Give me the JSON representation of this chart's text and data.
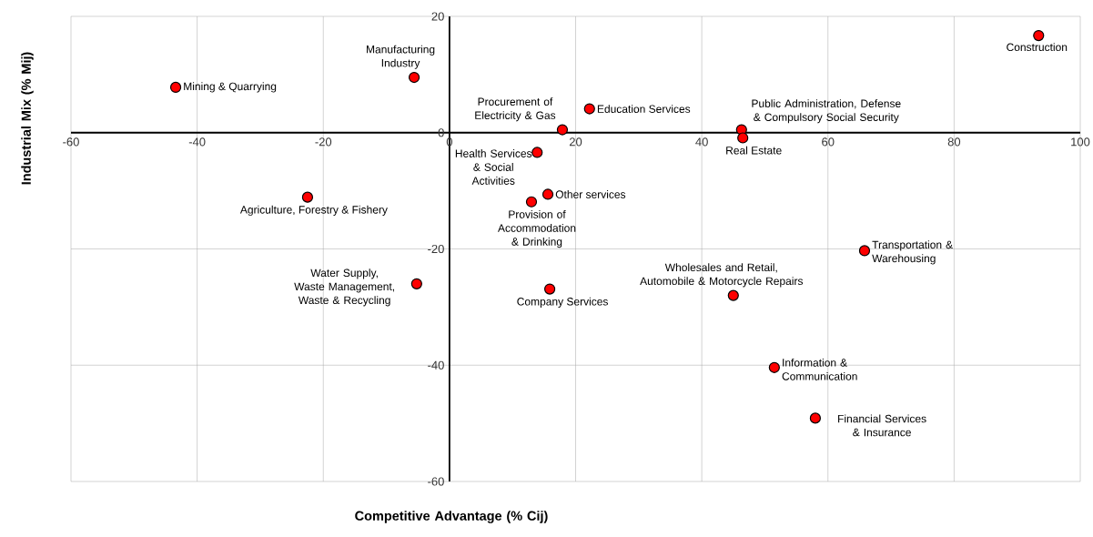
{
  "chart_data": {
    "type": "scatter",
    "xlabel": "Competitive Advantage (% Cij)",
    "ylabel": "Industrial Mix (% Mij)",
    "xlim": [
      -60,
      100
    ],
    "ylim": [
      -60,
      20
    ],
    "xticks": [
      -60,
      -40,
      -20,
      0,
      20,
      40,
      60,
      80,
      100
    ],
    "yticks": [
      -60,
      -40,
      -20,
      0,
      20
    ],
    "grid": true,
    "marker": "circle",
    "series": [
      {
        "color": "#ff0000",
        "x": [
          -43.4,
          -5.6,
          17.9,
          22.2,
          93.4,
          46.3,
          46.5,
          13.9,
          15.6,
          13.0,
          -22.5,
          -5.2,
          15.9,
          65.8,
          45.0,
          51.5,
          58.0
        ],
        "values": [
          7.8,
          9.5,
          0.5,
          4.1,
          16.7,
          0.5,
          -0.9,
          -3.4,
          -10.6,
          -11.9,
          -11.1,
          -26.0,
          -26.9,
          -20.3,
          -28.0,
          -40.4,
          -49.1
        ]
      }
    ],
    "annotations": [
      {
        "text": "Mining & Quarrying",
        "x": -43.4,
        "y": 7.8
      },
      {
        "text": "Manufacturing Industry",
        "x": -5.6,
        "y": 9.5
      },
      {
        "text": "Procurement of Electricity & Gas",
        "x": 17.9,
        "y": 0.5
      },
      {
        "text": "Education Services",
        "x": 22.2,
        "y": 4.1
      },
      {
        "text": "Construction",
        "x": 93.4,
        "y": 16.7
      },
      {
        "text": "Public Administration, Defense & Compulsory Social Security",
        "x": 46.3,
        "y": 0.5
      },
      {
        "text": "Real Estate",
        "x": 46.5,
        "y": -0.9
      },
      {
        "text": "Health Services & Social Activities",
        "x": 13.9,
        "y": -3.4
      },
      {
        "text": "Other services",
        "x": 15.6,
        "y": -10.6
      },
      {
        "text": "Provision of Accommodation & Drinking",
        "x": 13.0,
        "y": -11.9
      },
      {
        "text": "Agriculture, Forestry & Fishery",
        "x": -22.5,
        "y": -11.1
      },
      {
        "text": "Water Supply, Waste Management, Waste & Recycling",
        "x": -5.2,
        "y": -26.0
      },
      {
        "text": "Company Services",
        "x": 15.9,
        "y": -26.9
      },
      {
        "text": "Transportation & Warehousing",
        "x": 65.8,
        "y": -20.3
      },
      {
        "text": "Wholesales and Retail, Automobile & Motorcycle Repairs",
        "x": 45.0,
        "y": -28.0
      },
      {
        "text": "Information & Communication",
        "x": 51.5,
        "y": -40.4
      },
      {
        "text": "Financial Services & Insurance",
        "x": 58.0,
        "y": -49.1
      }
    ]
  }
}
